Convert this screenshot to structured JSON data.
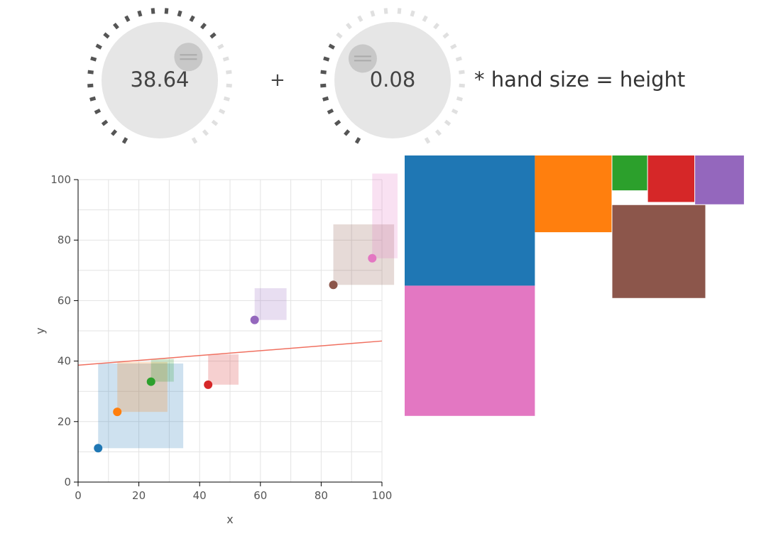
{
  "knobs": [
    {
      "value": "38.64",
      "fraction": 0.67
    },
    {
      "value": "0.08",
      "fraction": 0.32
    }
  ],
  "operator_label": "+",
  "formula_label": "* hand size = height",
  "colors": {
    "knob_face": "#e6e6e6",
    "handle": "#c8c8c8",
    "tick_on": "#555555",
    "tick_off": "#e0e0e0",
    "regression_line": "#f07060"
  },
  "chart_data": {
    "type": "scatter",
    "xlabel": "x",
    "ylabel": "y",
    "xlim": [
      0,
      100
    ],
    "ylim": [
      0,
      100
    ],
    "xticks": [
      "0",
      "20",
      "40",
      "60",
      "80",
      "100"
    ],
    "yticks": [
      "0",
      "20",
      "40",
      "60",
      "80",
      "100"
    ],
    "grid": true,
    "points": [
      {
        "x": 6.6,
        "y": 11.2,
        "hand": 28,
        "color": "#1f77b4"
      },
      {
        "x": 12.9,
        "y": 23.2,
        "hand": 16.5,
        "color": "#ff7f0e"
      },
      {
        "x": 24.0,
        "y": 33.2,
        "hand": 7.5,
        "color": "#2ca02c"
      },
      {
        "x": 42.8,
        "y": 32.2,
        "hand": 10,
        "color": "#d62728"
      },
      {
        "x": 58.1,
        "y": 53.6,
        "hand": 10.5,
        "color": "#9467bd"
      },
      {
        "x": 84.0,
        "y": 65.2,
        "hand": 20,
        "color": "#8c564b"
      },
      {
        "x": 96.8,
        "y": 74.0,
        "hand": 28,
        "color": "#e377c2"
      }
    ],
    "regression": {
      "intercept": 38.64,
      "slope": 0.08
    }
  }
}
